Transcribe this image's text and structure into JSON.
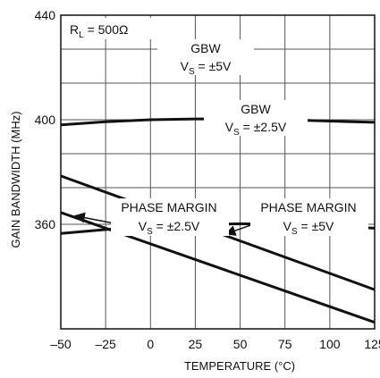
{
  "chart_data": {
    "type": "line",
    "xlabel": "TEMPERATURE (°C)",
    "ylabel": "GAIN BANDWIDTH (MHz)",
    "xlim": [
      -50,
      125
    ],
    "ylim": [
      320,
      440
    ],
    "x_ticks": [
      -50,
      -25,
      0,
      25,
      50,
      75,
      100,
      125
    ],
    "x_tick_labels": [
      "–50",
      "–25",
      "0",
      "25",
      "50",
      "75",
      "100",
      "125"
    ],
    "y_labeled_ticks": [
      360,
      400,
      440
    ],
    "y_gridlines": [
      360,
      374,
      387,
      400,
      414,
      427,
      440
    ],
    "grid": true,
    "annotations": [
      {
        "key": "rl",
        "main": "R",
        "sub": "L",
        "rest": " = 500Ω"
      },
      {
        "key": "gbw5",
        "line1": "GBW",
        "line2_main": "V",
        "line2_sub": "S",
        "line2_rest": " = ±5V"
      },
      {
        "key": "gbw25",
        "line1": "GBW",
        "line2_main": "V",
        "line2_sub": "S",
        "line2_rest": " = ±2.5V"
      },
      {
        "key": "pm25",
        "line1": "PHASE MARGIN",
        "line2_main": "V",
        "line2_sub": "S",
        "line2_rest": " = ±2.5V"
      },
      {
        "key": "pm5",
        "line1": "PHASE MARGIN",
        "line2_main": "V",
        "line2_sub": "S",
        "line2_rest": " = ±5V"
      }
    ],
    "series": [
      {
        "key": "gbw5",
        "x": [
          -50,
          -25,
          0,
          25,
          50,
          75,
          100,
          125
        ],
        "y": [
          398,
          399.2,
          400,
          400.3,
          400.3,
          400,
          399.5,
          399
        ]
      },
      {
        "key": "gbw25",
        "x": [
          -50,
          -25,
          0,
          25,
          50,
          75,
          100,
          125
        ],
        "y": [
          356.5,
          358,
          359,
          359.8,
          360.2,
          360,
          359.5,
          358.5
        ]
      },
      {
        "key": "pm25",
        "x": [
          -50,
          125
        ],
        "y": [
          364.5,
          322.5
        ]
      },
      {
        "key": "pm5",
        "x": [
          -50,
          125
        ],
        "y": [
          378.5,
          335
        ]
      }
    ]
  }
}
